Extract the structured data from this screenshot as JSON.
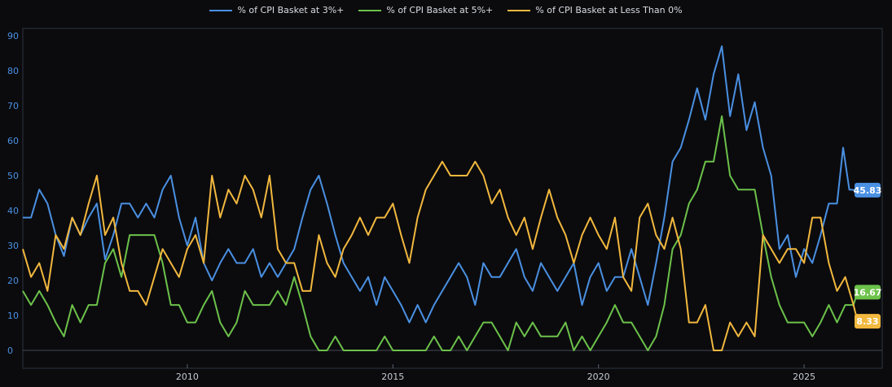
{
  "chart_data": {
    "type": "line",
    "title": "",
    "xlabel": "",
    "ylabel": "",
    "ylim": [
      0,
      90
    ],
    "xlim": [
      2006.0,
      2026.9
    ],
    "y_ticks": [
      "0",
      "10",
      "20",
      "30",
      "40",
      "50",
      "60",
      "70",
      "80",
      "90"
    ],
    "x_ticks": [
      {
        "year": 2010,
        "label": "2010"
      },
      {
        "year": 2015,
        "label": "2015"
      },
      {
        "year": 2020,
        "label": "2020"
      },
      {
        "year": 2025,
        "label": "2025"
      }
    ],
    "series": [
      {
        "name": "% of CPI Basket at 3%+",
        "color": "#4a90e2",
        "end_label": "45.83",
        "points": [
          [
            2006.0,
            38
          ],
          [
            2006.2,
            38
          ],
          [
            2006.4,
            46
          ],
          [
            2006.6,
            42
          ],
          [
            2006.8,
            33
          ],
          [
            2007.0,
            27
          ],
          [
            2007.2,
            38
          ],
          [
            2007.4,
            33
          ],
          [
            2007.6,
            38
          ],
          [
            2007.8,
            42
          ],
          [
            2008.0,
            26
          ],
          [
            2008.2,
            33
          ],
          [
            2008.4,
            42
          ],
          [
            2008.6,
            42
          ],
          [
            2008.8,
            38
          ],
          [
            2009.0,
            42
          ],
          [
            2009.2,
            38
          ],
          [
            2009.4,
            46
          ],
          [
            2009.6,
            50
          ],
          [
            2009.8,
            38
          ],
          [
            2010.0,
            30
          ],
          [
            2010.2,
            38
          ],
          [
            2010.4,
            25
          ],
          [
            2010.6,
            20
          ],
          [
            2010.8,
            25
          ],
          [
            2011.0,
            29
          ],
          [
            2011.2,
            25
          ],
          [
            2011.4,
            25
          ],
          [
            2011.6,
            29
          ],
          [
            2011.8,
            21
          ],
          [
            2012.0,
            25
          ],
          [
            2012.2,
            21
          ],
          [
            2012.4,
            25
          ],
          [
            2012.6,
            29
          ],
          [
            2012.8,
            38
          ],
          [
            2013.0,
            46
          ],
          [
            2013.2,
            50
          ],
          [
            2013.4,
            42
          ],
          [
            2013.6,
            33
          ],
          [
            2013.8,
            25
          ],
          [
            2014.0,
            21
          ],
          [
            2014.2,
            17
          ],
          [
            2014.4,
            21
          ],
          [
            2014.6,
            13
          ],
          [
            2014.8,
            21
          ],
          [
            2015.0,
            17
          ],
          [
            2015.2,
            13
          ],
          [
            2015.4,
            8
          ],
          [
            2015.6,
            13
          ],
          [
            2015.8,
            8
          ],
          [
            2016.0,
            13
          ],
          [
            2016.2,
            17
          ],
          [
            2016.4,
            21
          ],
          [
            2016.6,
            25
          ],
          [
            2016.8,
            21
          ],
          [
            2017.0,
            13
          ],
          [
            2017.2,
            25
          ],
          [
            2017.4,
            21
          ],
          [
            2017.6,
            21
          ],
          [
            2017.8,
            25
          ],
          [
            2018.0,
            29
          ],
          [
            2018.2,
            21
          ],
          [
            2018.4,
            17
          ],
          [
            2018.6,
            25
          ],
          [
            2018.8,
            21
          ],
          [
            2019.0,
            17
          ],
          [
            2019.2,
            21
          ],
          [
            2019.4,
            25
          ],
          [
            2019.6,
            13
          ],
          [
            2019.8,
            21
          ],
          [
            2020.0,
            25
          ],
          [
            2020.2,
            17
          ],
          [
            2020.4,
            21
          ],
          [
            2020.6,
            21
          ],
          [
            2020.8,
            29
          ],
          [
            2021.0,
            21
          ],
          [
            2021.2,
            13
          ],
          [
            2021.4,
            25
          ],
          [
            2021.6,
            38
          ],
          [
            2021.8,
            54
          ],
          [
            2022.0,
            58
          ],
          [
            2022.2,
            66
          ],
          [
            2022.4,
            75
          ],
          [
            2022.6,
            66
          ],
          [
            2022.8,
            79
          ],
          [
            2023.0,
            87
          ],
          [
            2023.2,
            67
          ],
          [
            2023.4,
            79
          ],
          [
            2023.6,
            63
          ],
          [
            2023.8,
            71
          ],
          [
            2024.0,
            58
          ],
          [
            2024.2,
            50
          ],
          [
            2024.4,
            29
          ],
          [
            2024.6,
            33
          ],
          [
            2024.8,
            21
          ],
          [
            2025.0,
            29
          ],
          [
            2025.2,
            25
          ],
          [
            2025.4,
            33
          ],
          [
            2025.6,
            42
          ],
          [
            2025.8,
            42
          ],
          [
            2025.95,
            58
          ],
          [
            2026.1,
            46
          ],
          [
            2026.3,
            45.83
          ]
        ]
      },
      {
        "name": "% of CPI Basket at 5%+",
        "color": "#6cc24a",
        "end_label": "16.67",
        "points": [
          [
            2006.0,
            17
          ],
          [
            2006.2,
            13
          ],
          [
            2006.4,
            17
          ],
          [
            2006.6,
            13
          ],
          [
            2006.8,
            8
          ],
          [
            2007.0,
            4
          ],
          [
            2007.2,
            13
          ],
          [
            2007.4,
            8
          ],
          [
            2007.6,
            13
          ],
          [
            2007.8,
            13
          ],
          [
            2008.0,
            25
          ],
          [
            2008.2,
            29
          ],
          [
            2008.4,
            21
          ],
          [
            2008.6,
            33
          ],
          [
            2008.8,
            33
          ],
          [
            2009.0,
            33
          ],
          [
            2009.2,
            33
          ],
          [
            2009.4,
            25
          ],
          [
            2009.6,
            13
          ],
          [
            2009.8,
            13
          ],
          [
            2010.0,
            8
          ],
          [
            2010.2,
            8
          ],
          [
            2010.4,
            13
          ],
          [
            2010.6,
            17
          ],
          [
            2010.8,
            8
          ],
          [
            2011.0,
            4
          ],
          [
            2011.2,
            8
          ],
          [
            2011.4,
            17
          ],
          [
            2011.6,
            13
          ],
          [
            2011.8,
            13
          ],
          [
            2012.0,
            13
          ],
          [
            2012.2,
            17
          ],
          [
            2012.4,
            13
          ],
          [
            2012.6,
            21
          ],
          [
            2012.8,
            13
          ],
          [
            2013.0,
            4
          ],
          [
            2013.2,
            0
          ],
          [
            2013.4,
            0
          ],
          [
            2013.6,
            4
          ],
          [
            2013.8,
            0
          ],
          [
            2014.0,
            0
          ],
          [
            2014.2,
            0
          ],
          [
            2014.4,
            0
          ],
          [
            2014.6,
            0
          ],
          [
            2014.8,
            4
          ],
          [
            2015.0,
            0
          ],
          [
            2015.2,
            0
          ],
          [
            2015.4,
            0
          ],
          [
            2015.6,
            0
          ],
          [
            2015.8,
            0
          ],
          [
            2016.0,
            4
          ],
          [
            2016.2,
            0
          ],
          [
            2016.4,
            0
          ],
          [
            2016.6,
            4
          ],
          [
            2016.8,
            0
          ],
          [
            2017.0,
            4
          ],
          [
            2017.2,
            8
          ],
          [
            2017.4,
            8
          ],
          [
            2017.6,
            4
          ],
          [
            2017.8,
            0
          ],
          [
            2018.0,
            8
          ],
          [
            2018.2,
            4
          ],
          [
            2018.4,
            8
          ],
          [
            2018.6,
            4
          ],
          [
            2018.8,
            4
          ],
          [
            2019.0,
            4
          ],
          [
            2019.2,
            8
          ],
          [
            2019.4,
            0
          ],
          [
            2019.6,
            4
          ],
          [
            2019.8,
            0
          ],
          [
            2020.0,
            4
          ],
          [
            2020.2,
            8
          ],
          [
            2020.4,
            13
          ],
          [
            2020.6,
            8
          ],
          [
            2020.8,
            8
          ],
          [
            2021.0,
            4
          ],
          [
            2021.2,
            0
          ],
          [
            2021.4,
            4
          ],
          [
            2021.6,
            13
          ],
          [
            2021.8,
            29
          ],
          [
            2022.0,
            33
          ],
          [
            2022.2,
            42
          ],
          [
            2022.4,
            46
          ],
          [
            2022.6,
            54
          ],
          [
            2022.8,
            54
          ],
          [
            2023.0,
            67
          ],
          [
            2023.2,
            50
          ],
          [
            2023.4,
            46
          ],
          [
            2023.6,
            46
          ],
          [
            2023.8,
            46
          ],
          [
            2024.0,
            33
          ],
          [
            2024.2,
            21
          ],
          [
            2024.4,
            13
          ],
          [
            2024.6,
            8
          ],
          [
            2024.8,
            8
          ],
          [
            2025.0,
            8
          ],
          [
            2025.2,
            4
          ],
          [
            2025.4,
            8
          ],
          [
            2025.6,
            13
          ],
          [
            2025.8,
            8
          ],
          [
            2026.0,
            13
          ],
          [
            2026.2,
            13
          ],
          [
            2026.3,
            16.67
          ]
        ]
      },
      {
        "name": "% of CPI Basket at Less Than 0%",
        "color": "#f2b83e",
        "end_label": "8.33",
        "points": [
          [
            2006.0,
            29
          ],
          [
            2006.2,
            21
          ],
          [
            2006.4,
            25
          ],
          [
            2006.6,
            17
          ],
          [
            2006.8,
            33
          ],
          [
            2007.0,
            29
          ],
          [
            2007.2,
            38
          ],
          [
            2007.4,
            33
          ],
          [
            2007.6,
            42
          ],
          [
            2007.8,
            50
          ],
          [
            2008.0,
            33
          ],
          [
            2008.2,
            38
          ],
          [
            2008.4,
            25
          ],
          [
            2008.6,
            17
          ],
          [
            2008.8,
            17
          ],
          [
            2009.0,
            13
          ],
          [
            2009.2,
            21
          ],
          [
            2009.4,
            29
          ],
          [
            2009.6,
            25
          ],
          [
            2009.8,
            21
          ],
          [
            2010.0,
            29
          ],
          [
            2010.2,
            33
          ],
          [
            2010.4,
            25
          ],
          [
            2010.6,
            50
          ],
          [
            2010.8,
            38
          ],
          [
            2011.0,
            46
          ],
          [
            2011.2,
            42
          ],
          [
            2011.4,
            50
          ],
          [
            2011.6,
            46
          ],
          [
            2011.8,
            38
          ],
          [
            2012.0,
            50
          ],
          [
            2012.2,
            29
          ],
          [
            2012.4,
            25
          ],
          [
            2012.6,
            25
          ],
          [
            2012.8,
            17
          ],
          [
            2013.0,
            17
          ],
          [
            2013.2,
            33
          ],
          [
            2013.4,
            25
          ],
          [
            2013.6,
            21
          ],
          [
            2013.8,
            29
          ],
          [
            2014.0,
            33
          ],
          [
            2014.2,
            38
          ],
          [
            2014.4,
            33
          ],
          [
            2014.6,
            38
          ],
          [
            2014.8,
            38
          ],
          [
            2015.0,
            42
          ],
          [
            2015.2,
            33
          ],
          [
            2015.4,
            25
          ],
          [
            2015.6,
            38
          ],
          [
            2015.8,
            46
          ],
          [
            2016.0,
            50
          ],
          [
            2016.2,
            54
          ],
          [
            2016.4,
            50
          ],
          [
            2016.6,
            50
          ],
          [
            2016.8,
            50
          ],
          [
            2017.0,
            54
          ],
          [
            2017.2,
            50
          ],
          [
            2017.4,
            42
          ],
          [
            2017.6,
            46
          ],
          [
            2017.8,
            38
          ],
          [
            2018.0,
            33
          ],
          [
            2018.2,
            38
          ],
          [
            2018.4,
            29
          ],
          [
            2018.6,
            38
          ],
          [
            2018.8,
            46
          ],
          [
            2019.0,
            38
          ],
          [
            2019.2,
            33
          ],
          [
            2019.4,
            25
          ],
          [
            2019.6,
            33
          ],
          [
            2019.8,
            38
          ],
          [
            2020.0,
            33
          ],
          [
            2020.2,
            29
          ],
          [
            2020.4,
            38
          ],
          [
            2020.6,
            21
          ],
          [
            2020.8,
            17
          ],
          [
            2021.0,
            38
          ],
          [
            2021.2,
            42
          ],
          [
            2021.4,
            33
          ],
          [
            2021.6,
            29
          ],
          [
            2021.8,
            38
          ],
          [
            2022.0,
            29
          ],
          [
            2022.2,
            8
          ],
          [
            2022.4,
            8
          ],
          [
            2022.6,
            13
          ],
          [
            2022.8,
            0
          ],
          [
            2023.0,
            0
          ],
          [
            2023.2,
            8
          ],
          [
            2023.4,
            4
          ],
          [
            2023.6,
            8
          ],
          [
            2023.8,
            4
          ],
          [
            2024.0,
            33
          ],
          [
            2024.2,
            29
          ],
          [
            2024.4,
            25
          ],
          [
            2024.6,
            29
          ],
          [
            2024.8,
            29
          ],
          [
            2025.0,
            25
          ],
          [
            2025.2,
            38
          ],
          [
            2025.4,
            38
          ],
          [
            2025.6,
            25
          ],
          [
            2025.8,
            17
          ],
          [
            2026.0,
            21
          ],
          [
            2026.2,
            13
          ],
          [
            2026.3,
            8.33
          ]
        ]
      }
    ]
  }
}
